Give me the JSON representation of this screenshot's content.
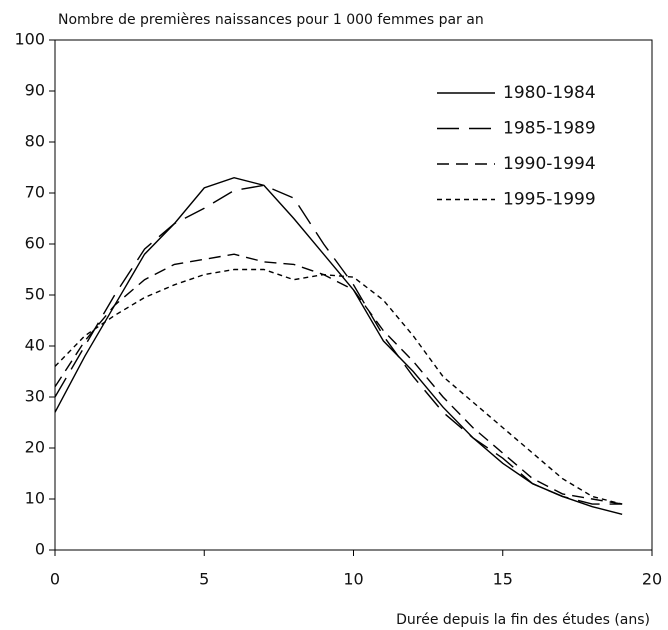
{
  "chart_data": {
    "type": "line",
    "ylabel": "Nombre de premières naissances pour 1 000 femmes par an",
    "xlabel": "Durée depuis la fin des études (ans)",
    "x": [
      0,
      1,
      2,
      3,
      4,
      5,
      6,
      7,
      8,
      9,
      10,
      11,
      12,
      13,
      14,
      15,
      16,
      17,
      18,
      19
    ],
    "series": [
      {
        "name": "1980-1984",
        "color": "#000000",
        "style": "solid",
        "values": [
          27,
          38,
          48,
          58,
          64,
          71,
          73,
          71.5,
          65,
          58,
          51,
          41,
          35,
          28,
          22,
          17,
          13,
          10.5,
          8.5,
          7
        ]
      },
      {
        "name": "1985-1989",
        "color": "#000000",
        "style": "long-dash",
        "values": [
          30,
          40,
          50,
          59,
          64,
          67,
          70.5,
          71.5,
          69,
          60,
          52,
          42,
          34,
          27,
          22,
          18,
          13,
          10.5,
          9,
          9
        ]
      },
      {
        "name": "1990-1994",
        "color": "#000000",
        "style": "dash",
        "values": [
          32,
          41,
          48,
          53,
          56,
          57,
          58,
          56.5,
          56,
          54,
          51,
          43,
          37,
          30,
          24,
          19,
          14,
          11,
          10,
          9
        ]
      },
      {
        "name": "1995-1999",
        "color": "#000000",
        "style": "dot",
        "values": [
          36,
          42,
          46,
          49.5,
          52,
          54,
          55,
          55,
          53,
          54,
          53.5,
          49,
          42,
          34,
          29,
          24,
          19,
          14,
          10.5,
          9
        ]
      }
    ],
    "xlim": [
      0,
      20
    ],
    "xticks": [
      0,
      5,
      10,
      15,
      20
    ],
    "ylim": [
      0,
      100
    ],
    "yticks": [
      0,
      10,
      20,
      30,
      40,
      50,
      60,
      70,
      80,
      90,
      100
    ],
    "legend": "upper right"
  }
}
